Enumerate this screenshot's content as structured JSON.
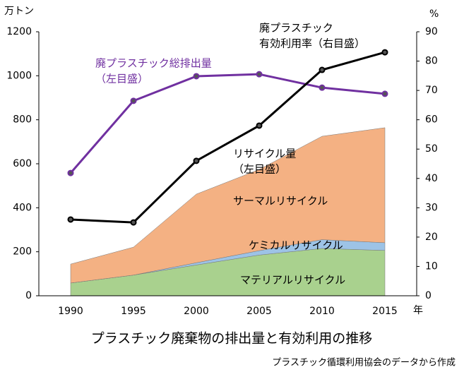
{
  "chart_data": {
    "type": "area",
    "title": "プラスチック廃棄物の排出量と有効利用の推移",
    "source": "プラスチック循環利用協会のデータから作成",
    "y_unit": "万トン",
    "y2_unit": "%",
    "x_unit": "年",
    "categories": [
      "1990",
      "1995",
      "2000",
      "2005",
      "2010",
      "2015"
    ],
    "series": [
      {
        "name": "マテリアルリサイクル",
        "type": "area",
        "color": "#a9d18e",
        "values": [
          58,
          94,
          140,
          185,
          215,
          206
        ]
      },
      {
        "name": "ケミカルリサイクル",
        "type": "area",
        "color": "#9dc3e6",
        "values": [
          0,
          0,
          10,
          20,
          40,
          35
        ]
      },
      {
        "name": "サーマルリサイクル",
        "type": "area",
        "color": "#f4b183",
        "values": [
          86,
          127,
          312,
          369,
          470,
          523
        ]
      },
      {
        "name": "廃プラスチック総排出量",
        "type": "line",
        "color": "#7030a0",
        "values": [
          558,
          886,
          998,
          1007,
          946,
          918
        ]
      },
      {
        "name": "廃プラスチック有効利用率",
        "type": "line",
        "axis": "y2",
        "color": "#000000",
        "values": [
          26,
          25,
          46,
          58,
          77,
          83
        ]
      }
    ],
    "annotations": [
      "廃プラスチック",
      "有効利用率（右目盛）",
      "廃プラスチック総排出量",
      "（左目盛）",
      "リサイクル量",
      "（左目盛）",
      "サーマルリサイクル",
      "ケミカルリサイクル",
      "マテリアルリサイクル"
    ],
    "ylim": [
      0,
      1200
    ],
    "yticks": [
      0,
      200,
      400,
      600,
      800,
      1000,
      1200
    ],
    "y2lim": [
      0,
      90
    ],
    "y2ticks": [
      0,
      10,
      20,
      30,
      40,
      50,
      60,
      70,
      80,
      90
    ],
    "grid": false
  }
}
